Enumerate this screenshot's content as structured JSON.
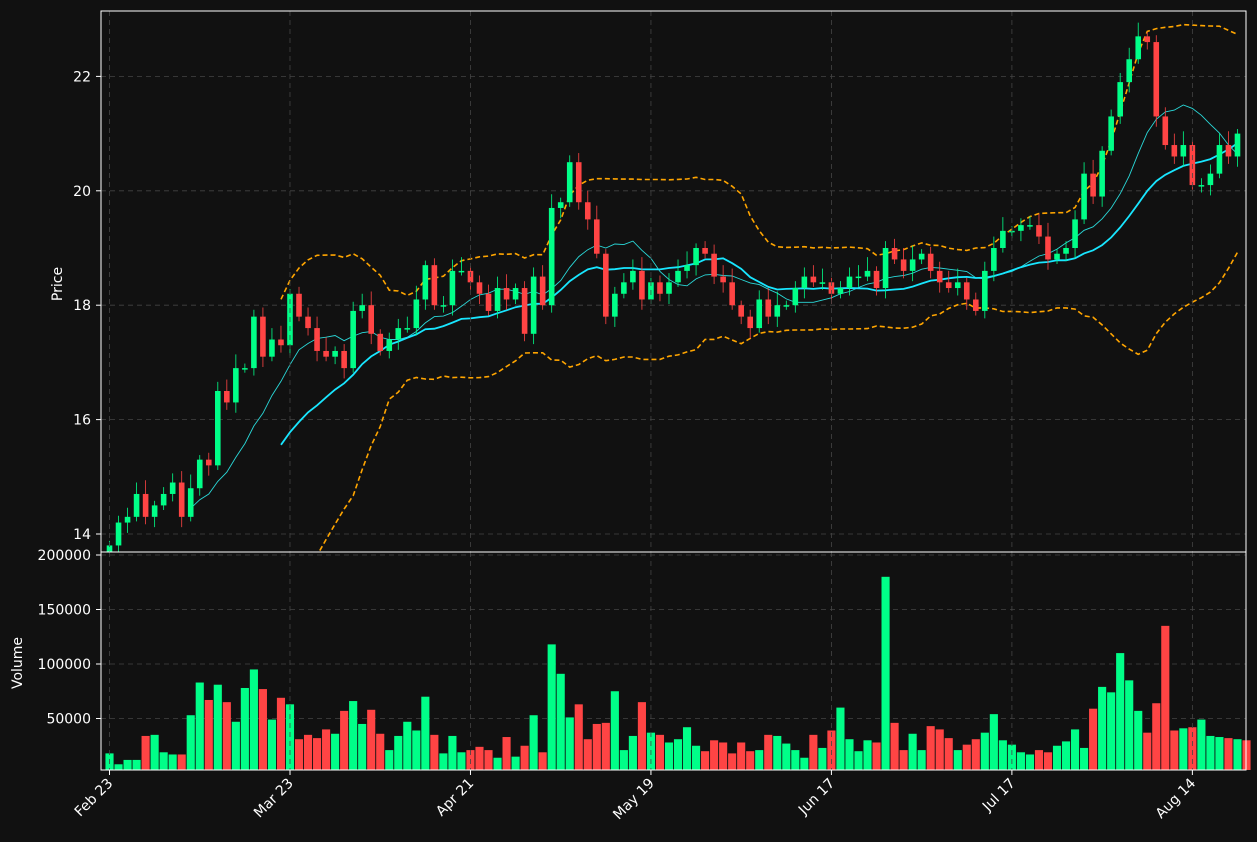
{
  "chart_data": [
    {
      "type": "candlestick",
      "ylabel": "Price",
      "ylim": [
        13.8,
        23.2
      ],
      "y_ticks": [
        "14",
        "16",
        "18",
        "20",
        "22"
      ],
      "x_tick_labels": [
        "Feb 23",
        "Mar 23",
        "Apr 21",
        "May 19",
        "Jun 17",
        "Jul 17",
        "Aug 14"
      ],
      "up_color": "#00ff88",
      "down_color": "#ff4444",
      "grid": true,
      "series": [
        {
          "name": "",
          "kind": "ohlc",
          "anchor_close": [
            13.8,
            14.2,
            14.3,
            14.7,
            14.3,
            14.5,
            14.7,
            14.9,
            14.3,
            14.8,
            15.3,
            15.2,
            16.5,
            16.3,
            16.9,
            16.9,
            17.8,
            17.1,
            17.4,
            17.3,
            18.2,
            17.8,
            17.6,
            17.2,
            17.1,
            17.2,
            16.9,
            17.9,
            18.0,
            17.5,
            17.2,
            17.4,
            17.6,
            17.6,
            18.1,
            18.7,
            18.0,
            18.0,
            18.6,
            18.6,
            18.4,
            18.2,
            17.9,
            18.3,
            18.1,
            18.3,
            17.5,
            18.5,
            18.0,
            19.7,
            19.8,
            20.5,
            19.8,
            19.5,
            18.9,
            17.8,
            18.2,
            18.4,
            18.6,
            18.1,
            18.4,
            18.2,
            18.4,
            18.6,
            18.7,
            19.0,
            18.9,
            18.5,
            18.4,
            18.0,
            17.8,
            17.6,
            18.1,
            17.8,
            18.0,
            18.0,
            18.3,
            18.5,
            18.4,
            18.4,
            18.2,
            18.3,
            18.5,
            18.5,
            18.6,
            18.3,
            19.0,
            18.8,
            18.6,
            18.8,
            18.9,
            18.6,
            18.4,
            18.3,
            18.4,
            18.1,
            17.9,
            18.6,
            19.0,
            19.3,
            19.3,
            19.4,
            19.4,
            19.2,
            18.8,
            18.9,
            19.0,
            19.5,
            20.3,
            19.9,
            20.7,
            21.3,
            21.9,
            22.3,
            22.7,
            22.6,
            21.3,
            20.8,
            20.6,
            20.8,
            20.1,
            20.1,
            20.3,
            20.8,
            20.6,
            21.0
          ],
          "note": "close prices, first bar at Feb 23"
        },
        {
          "name": "",
          "kind": "ma_fast",
          "color": "#2ad8d8"
        },
        {
          "name": "",
          "kind": "ma_slow",
          "color": "#18e6ff"
        },
        {
          "name": "",
          "kind": "bollinger_upper",
          "color": "#ffa500"
        },
        {
          "name": "",
          "kind": "bollinger_lower",
          "color": "#ffa500"
        }
      ]
    },
    {
      "type": "bar",
      "ylabel": "Volume",
      "ylim": [
        0,
        200000
      ],
      "y_ticks": [
        "50000",
        "100000",
        "150000",
        "200000"
      ],
      "values": [
        18000,
        8000,
        12000,
        12000,
        34000,
        35000,
        19000,
        17000,
        17000,
        53000,
        83000,
        67000,
        81000,
        65000,
        47000,
        78000,
        95000,
        77000,
        49000,
        69000,
        63000,
        31000,
        35000,
        32000,
        40000,
        36000,
        57000,
        66000,
        45000,
        58000,
        36000,
        21000,
        34000,
        47000,
        39000,
        70000,
        35000,
        18000,
        34000,
        19000,
        21000,
        24000,
        21000,
        14000,
        33000,
        15000,
        25000,
        53000,
        19000,
        118000,
        91000,
        51000,
        63000,
        31000,
        45000,
        46000,
        75000,
        21000,
        34000,
        65000,
        37000,
        35000,
        28000,
        31000,
        42000,
        25000,
        20000,
        30000,
        28000,
        18000,
        28000,
        20000,
        21000,
        35000,
        34000,
        27000,
        21000,
        14000,
        35000,
        23000,
        39000,
        60000,
        31000,
        20000,
        30000,
        28000,
        180000,
        46000,
        21000,
        36000,
        21000,
        43000,
        40000,
        32000,
        21000,
        26000,
        31000,
        37000,
        54000,
        30000,
        26000,
        19000,
        17000,
        21000,
        19000,
        25000,
        29000,
        40000,
        23000,
        59000,
        79000,
        74000,
        110000,
        85000,
        57000,
        37000,
        64000,
        135000,
        39000,
        41000,
        42000,
        49000,
        34000,
        33000,
        32000,
        31000,
        30000
      ]
    }
  ]
}
